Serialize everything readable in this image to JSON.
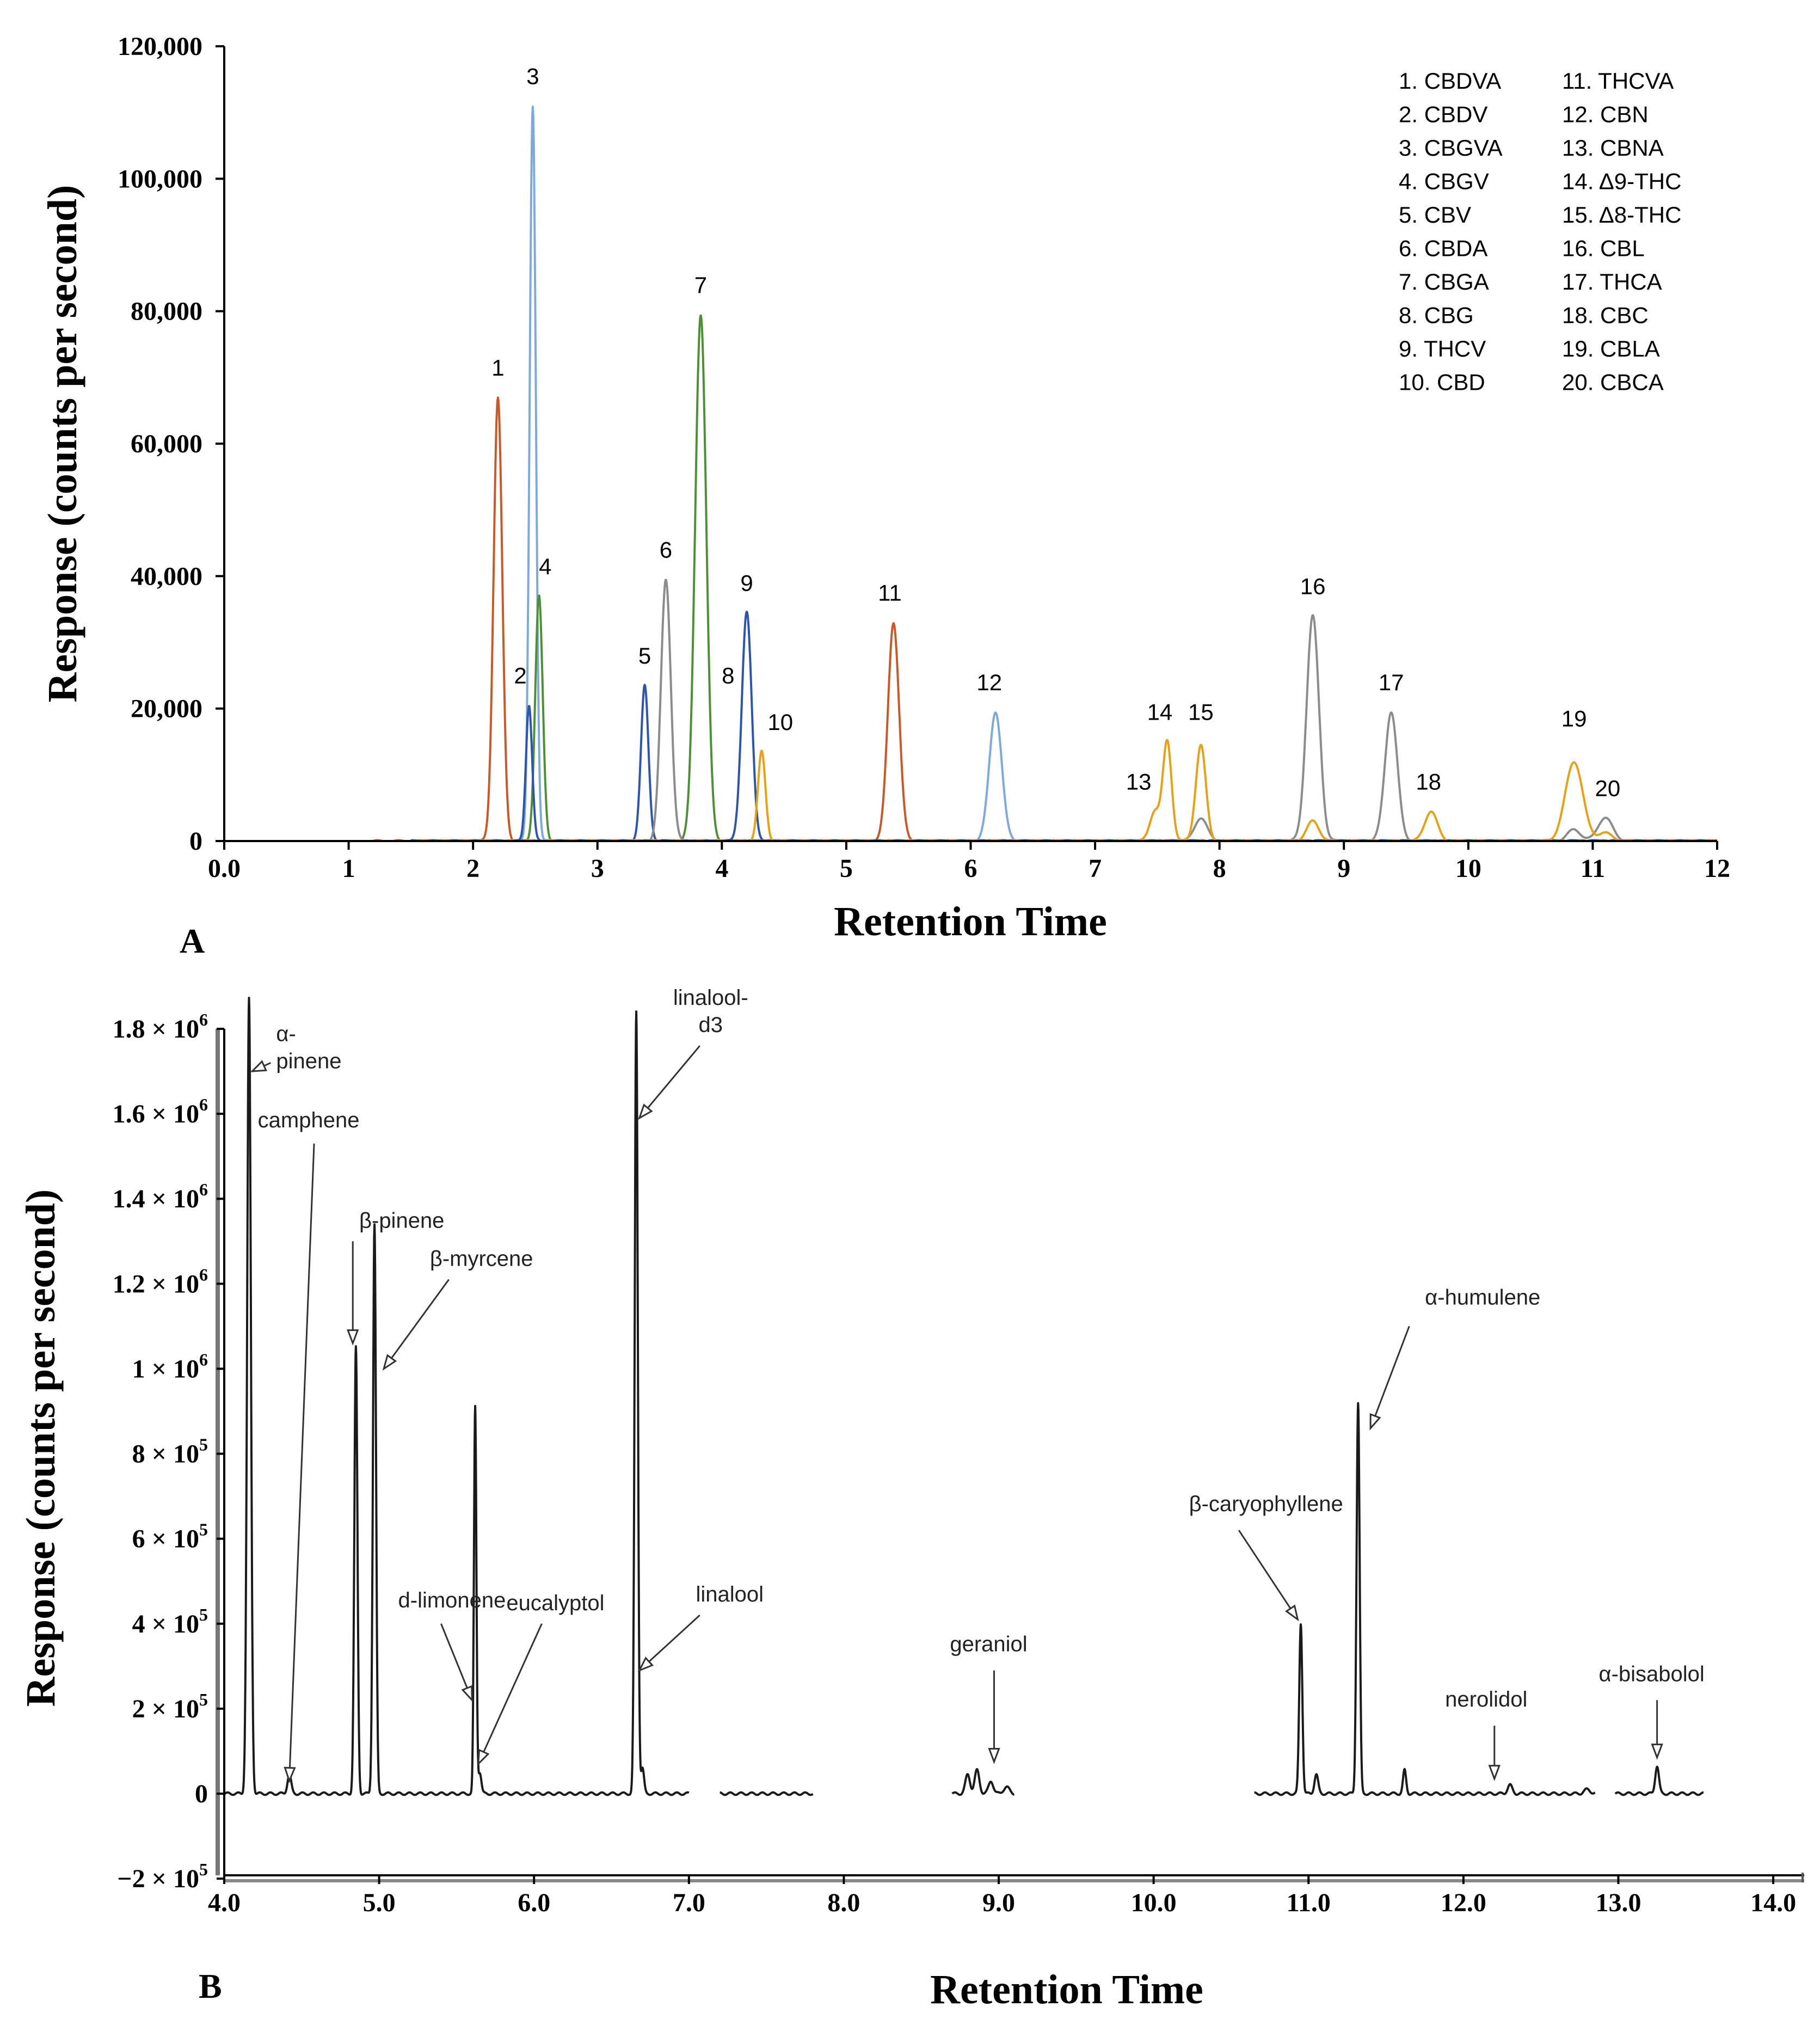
{
  "chart_data": [
    {
      "panel": "A",
      "type": "line",
      "xlabel": "Retention Time",
      "ylabel": "Response (counts per second)",
      "xlim": [
        0,
        12
      ],
      "ylim": [
        0,
        120000
      ],
      "xticks": [
        {
          "value": 0,
          "label": "0.0"
        },
        {
          "value": 1,
          "label": "1"
        },
        {
          "value": 2,
          "label": "2"
        },
        {
          "value": 3,
          "label": "3"
        },
        {
          "value": 4,
          "label": "4"
        },
        {
          "value": 5,
          "label": "5"
        },
        {
          "value": 6,
          "label": "6"
        },
        {
          "value": 7,
          "label": "7"
        },
        {
          "value": 8,
          "label": "8"
        },
        {
          "value": 9,
          "label": "9"
        },
        {
          "value": 10,
          "label": "10"
        },
        {
          "value": 11,
          "label": "11"
        },
        {
          "value": 12,
          "label": "12"
        }
      ],
      "yticks": [
        {
          "value": 0,
          "label": "0"
        },
        {
          "value": 20000,
          "label": "20,000"
        },
        {
          "value": 40000,
          "label": "40,000"
        },
        {
          "value": 60000,
          "label": "60,000"
        },
        {
          "value": 80000,
          "label": "80,000"
        },
        {
          "value": 100000,
          "label": "100,000"
        },
        {
          "value": 120000,
          "label": "120,000"
        }
      ],
      "series": [
        {
          "name": "orange-red trace",
          "color": "#c55a2a",
          "range": [
            1.2,
            12
          ],
          "peaks": [
            {
              "x": 2.2,
              "y": 67000,
              "w": 0.035
            },
            {
              "x": 5.38,
              "y": 33000,
              "w": 0.045
            }
          ]
        },
        {
          "name": "light blue trace",
          "color": "#7fa9d9",
          "range": [
            1.5,
            12
          ],
          "peaks": [
            {
              "x": 2.48,
              "y": 111000,
              "w": 0.025
            },
            {
              "x": 6.2,
              "y": 19500,
              "w": 0.05
            }
          ]
        },
        {
          "name": "green trace",
          "color": "#4f8f3a",
          "range": [
            1.5,
            12
          ],
          "peaks": [
            {
              "x": 2.53,
              "y": 37000,
              "w": 0.03
            },
            {
              "x": 3.83,
              "y": 79500,
              "w": 0.045
            }
          ]
        },
        {
          "name": "blue trace",
          "color": "#2f55a8",
          "range": [
            1.5,
            12
          ],
          "peaks": [
            {
              "x": 2.45,
              "y": 20500,
              "w": 0.025
            },
            {
              "x": 3.38,
              "y": 23500,
              "w": 0.03
            },
            {
              "x": 4.2,
              "y": 34500,
              "w": 0.04
            }
          ]
        },
        {
          "name": "gray trace",
          "color": "#8c8c8c",
          "range": [
            1.5,
            12
          ],
          "peaks": [
            {
              "x": 3.55,
              "y": 39500,
              "w": 0.04
            },
            {
              "x": 7.85,
              "y": 3500,
              "w": 0.05
            },
            {
              "x": 8.75,
              "y": 34000,
              "w": 0.05
            },
            {
              "x": 9.38,
              "y": 19500,
              "w": 0.05
            },
            {
              "x": 10.85,
              "y": 1800,
              "w": 0.05
            },
            {
              "x": 11.1,
              "y": 3500,
              "w": 0.06
            }
          ]
        },
        {
          "name": "yellow trace",
          "color": "#e3a21a",
          "range": [
            1.5,
            12
          ],
          "peaks": [
            {
              "x": 4.32,
              "y": 13500,
              "w": 0.03
            },
            {
              "x": 7.48,
              "y": 4500,
              "w": 0.04
            },
            {
              "x": 7.58,
              "y": 15000,
              "w": 0.035
            },
            {
              "x": 7.85,
              "y": 14500,
              "w": 0.04
            },
            {
              "x": 8.75,
              "y": 3000,
              "w": 0.05
            },
            {
              "x": 9.7,
              "y": 4500,
              "w": 0.05
            },
            {
              "x": 10.85,
              "y": 12000,
              "w": 0.07
            },
            {
              "x": 11.1,
              "y": 1200,
              "w": 0.06
            }
          ]
        }
      ],
      "peak_labels": [
        {
          "text": "1",
          "x": 2.2,
          "y": 67000
        },
        {
          "text": "2",
          "x": 2.38,
          "y": 20500
        },
        {
          "text": "3",
          "x": 2.48,
          "y": 111000
        },
        {
          "text": "4",
          "x": 2.58,
          "y": 37000
        },
        {
          "text": "5",
          "x": 3.38,
          "y": 23500
        },
        {
          "text": "6",
          "x": 3.55,
          "y": 39500
        },
        {
          "text": "7",
          "x": 3.83,
          "y": 79500
        },
        {
          "text": "8",
          "x": 4.05,
          "y": 20500
        },
        {
          "text": "9",
          "x": 4.2,
          "y": 34500
        },
        {
          "text": "10",
          "x": 4.47,
          "y": 13500
        },
        {
          "text": "11",
          "x": 5.35,
          "y": 33000
        },
        {
          "text": "12",
          "x": 6.15,
          "y": 19500
        },
        {
          "text": "13",
          "x": 7.35,
          "y": 4500
        },
        {
          "text": "14",
          "x": 7.52,
          "y": 15000
        },
        {
          "text": "15",
          "x": 7.85,
          "y": 15000
        },
        {
          "text": "16",
          "x": 8.75,
          "y": 34000
        },
        {
          "text": "17",
          "x": 9.38,
          "y": 19500
        },
        {
          "text": "18",
          "x": 9.68,
          "y": 4500
        },
        {
          "text": "19",
          "x": 10.85,
          "y": 14000
        },
        {
          "text": "20",
          "x": 11.12,
          "y": 3500
        }
      ],
      "legend": {
        "placement": "top-right",
        "entries": [
          "1.  CBDVA",
          "2.  CBDV",
          "3.  CBGVA",
          "4.  CBGV",
          "5.  CBV",
          "6.  CBDA",
          "7.  CBGA",
          "8.  CBG",
          "9.  THCV",
          "10. CBD",
          "11.  THCVA",
          "12.  CBN",
          "13.  CBNA",
          "14.  Δ9-THC",
          "15.  Δ8-THC",
          "16.  CBL",
          "17.  THCA",
          "18.  CBC",
          "19.  CBLA",
          "20.  CBCA"
        ]
      }
    },
    {
      "panel": "B",
      "type": "line",
      "xlabel": "Retention Time",
      "ylabel": "Response (counts per second)",
      "xlim": [
        4.0,
        14.2
      ],
      "ylim": [
        -200000,
        1900000
      ],
      "xticks": [
        {
          "value": 4,
          "label": "4.0"
        },
        {
          "value": 5,
          "label": "5.0"
        },
        {
          "value": 6,
          "label": "6.0"
        },
        {
          "value": 7,
          "label": "7.0"
        },
        {
          "value": 8,
          "label": "8.0"
        },
        {
          "value": 9,
          "label": "9.0"
        },
        {
          "value": 10,
          "label": "10.0"
        },
        {
          "value": 11,
          "label": "11.0"
        },
        {
          "value": 12,
          "label": "12.0"
        },
        {
          "value": 13,
          "label": "13.0"
        },
        {
          "value": 14,
          "label": "14.0"
        }
      ],
      "yticks": [
        {
          "value": -200000,
          "label": "−2 × 10",
          "exp": "5"
        },
        {
          "value": 0,
          "label": "0",
          "exp": ""
        },
        {
          "value": 200000,
          "label": "2 × 10",
          "exp": "5"
        },
        {
          "value": 400000,
          "label": "4 × 10",
          "exp": "5"
        },
        {
          "value": 600000,
          "label": "6 × 10",
          "exp": "5"
        },
        {
          "value": 800000,
          "label": "8 × 10",
          "exp": "5"
        },
        {
          "value": 1000000,
          "label": "1 × 10",
          "exp": "6"
        },
        {
          "value": 1200000,
          "label": "1.2 × 10",
          "exp": "6"
        },
        {
          "value": 1400000,
          "label": "1.4 × 10",
          "exp": "6"
        },
        {
          "value": 1600000,
          "label": "1.6 × 10",
          "exp": "6"
        },
        {
          "value": 1800000,
          "label": "1.8 × 10",
          "exp": "6"
        }
      ],
      "segments": [
        {
          "range": [
            4.0,
            7.0
          ],
          "peaks": [
            {
              "x": 4.16,
              "y": 1870000,
              "w": 0.012
            },
            {
              "x": 4.42,
              "y": 45000,
              "w": 0.012
            },
            {
              "x": 4.85,
              "y": 1050000,
              "w": 0.01
            },
            {
              "x": 4.97,
              "y": 1340000,
              "w": 0.01
            },
            {
              "x": 5.62,
              "y": 910000,
              "w": 0.008
            },
            {
              "x": 5.65,
              "y": 50000,
              "w": 0.01
            },
            {
              "x": 6.66,
              "y": 1840000,
              "w": 0.01
            },
            {
              "x": 6.7,
              "y": 60000,
              "w": 0.01
            }
          ]
        },
        {
          "range": [
            7.2,
            7.8
          ],
          "peaks": []
        },
        {
          "range": [
            8.7,
            9.1
          ],
          "peaks": [
            {
              "x": 8.8,
              "y": 45000,
              "w": 0.015
            },
            {
              "x": 8.86,
              "y": 55000,
              "w": 0.015
            },
            {
              "x": 8.95,
              "y": 30000,
              "w": 0.015
            },
            {
              "x": 9.05,
              "y": 15000,
              "w": 0.02
            }
          ]
        },
        {
          "range": [
            10.65,
            12.85
          ],
          "peaks": [
            {
              "x": 10.95,
              "y": 400000,
              "w": 0.01
            },
            {
              "x": 11.05,
              "y": 45000,
              "w": 0.012
            },
            {
              "x": 11.32,
              "y": 920000,
              "w": 0.01
            },
            {
              "x": 11.62,
              "y": 55000,
              "w": 0.01
            },
            {
              "x": 12.3,
              "y": 20000,
              "w": 0.015
            },
            {
              "x": 12.8,
              "y": 10000,
              "w": 0.02
            }
          ]
        },
        {
          "range": [
            12.98,
            13.55
          ],
          "peaks": [
            {
              "x": 13.25,
              "y": 65000,
              "w": 0.012
            }
          ]
        }
      ],
      "annotations": [
        {
          "text": "α-",
          "text2": "pinene",
          "target": [
            4.18,
            1700000
          ],
          "arrow_from": [
            4.3,
            1720000
          ]
        },
        {
          "text": "camphene",
          "target": [
            4.42,
            30000
          ],
          "arrow_from": [
            4.58,
            1530000
          ]
        },
        {
          "text": "β-pinene",
          "target": [
            4.83,
            1060000
          ],
          "arrow_from": [
            4.83,
            1300000
          ]
        },
        {
          "text": "β-myrcene",
          "target": [
            5.03,
            1000000
          ],
          "arrow_from": [
            5.45,
            1210000
          ]
        },
        {
          "text": "d-limonene",
          "target": [
            5.6,
            220000
          ],
          "arrow_from": [
            5.4,
            400000
          ]
        },
        {
          "text": "eucalyptol",
          "target": [
            5.64,
            70000
          ],
          "arrow_from": [
            6.05,
            400000
          ]
        },
        {
          "text": "linalool-",
          "text2": "d3",
          "target": [
            6.68,
            1590000
          ],
          "arrow_from": [
            7.07,
            1760000
          ]
        },
        {
          "text": "linalool",
          "target": [
            6.68,
            290000
          ],
          "arrow_from": [
            7.07,
            420000
          ]
        },
        {
          "text": "geraniol",
          "target": [
            8.97,
            75000
          ],
          "arrow_from": [
            8.97,
            290000
          ]
        },
        {
          "text": "β-caryophyllene",
          "target": [
            10.93,
            410000
          ],
          "arrow_from": [
            10.55,
            620000
          ]
        },
        {
          "text": "nerolidol",
          "target": [
            12.2,
            35000
          ],
          "arrow_from": [
            12.2,
            160000
          ]
        },
        {
          "text": "α-humulene",
          "target": [
            11.4,
            860000
          ],
          "arrow_from": [
            11.65,
            1100000
          ]
        },
        {
          "text": "α-bisabolol",
          "target": [
            13.25,
            85000
          ],
          "arrow_from": [
            13.25,
            220000
          ]
        }
      ]
    }
  ],
  "panel_letters": {
    "a": "A",
    "b": "B"
  }
}
